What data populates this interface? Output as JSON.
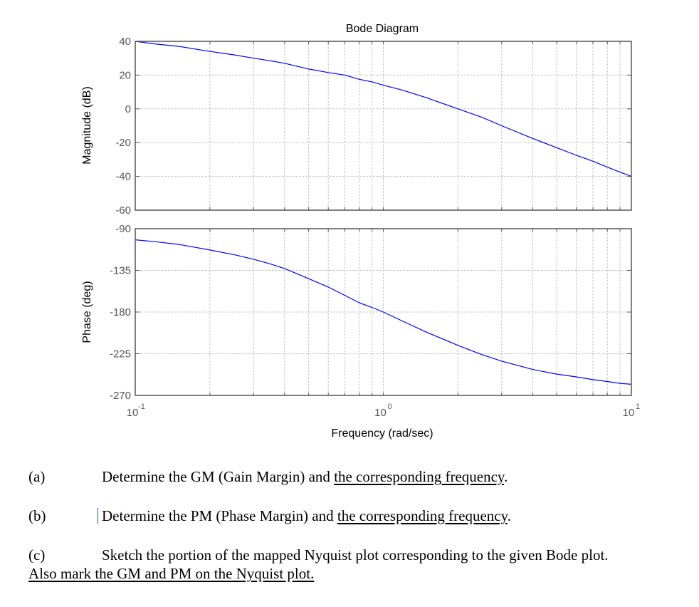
{
  "chart_data": {
    "type": "line",
    "title": "Bode Diagram",
    "xlabel": "Frequency (rad/sec)",
    "xscale": "log",
    "xlim": [
      0.1,
      10
    ],
    "x_ticks": [
      {
        "value": 0.1,
        "base": "10",
        "exp": "-1"
      },
      {
        "value": 1,
        "base": "10",
        "exp": "0"
      },
      {
        "value": 10,
        "base": "10",
        "exp": "1"
      }
    ],
    "grid": true,
    "line_color": "#0000ff",
    "subplots": [
      {
        "name": "magnitude",
        "ylabel": "Magnitude (dB)",
        "ylim": [
          -60,
          40
        ],
        "y_ticks": [
          40,
          20,
          0,
          -20,
          -40,
          -60
        ],
        "series": [
          {
            "name": "Magnitude",
            "x": [
              0.1,
              0.12,
              0.15,
              0.2,
              0.25,
              0.3,
              0.35,
              0.4,
              0.5,
              0.6,
              0.7,
              0.8,
              0.9,
              1.0,
              1.2,
              1.5,
              2.0,
              2.5,
              3.0,
              4.0,
              5.0,
              6.0,
              7.0,
              8.0,
              9.0,
              10.0
            ],
            "y": [
              40,
              38.5,
              37,
              34,
              32,
              30,
              28.5,
              27,
              23.6,
              21.5,
              20,
              17.5,
              16,
              14,
              11,
              6.5,
              0,
              -5,
              -10,
              -17.5,
              -23,
              -27.5,
              -31,
              -34.5,
              -37.5,
              -40
            ]
          }
        ]
      },
      {
        "name": "phase",
        "ylabel": "Phase (deg)",
        "ylim": [
          -270,
          -90
        ],
        "y_ticks": [
          -90,
          -135,
          -180,
          -225,
          -270
        ],
        "series": [
          {
            "name": "Phase",
            "x": [
              0.1,
              0.12,
              0.15,
              0.2,
              0.25,
              0.3,
              0.35,
              0.4,
              0.5,
              0.6,
              0.7,
              0.8,
              0.9,
              1.0,
              1.2,
              1.5,
              2.0,
              2.5,
              3.0,
              4.0,
              5.0,
              6.0,
              7.0,
              8.0,
              9.0,
              10.0
            ],
            "y": [
              -102,
              -104,
              -107,
              -113,
              -118,
              -123,
              -128,
              -133,
              -144,
              -153,
              -162,
              -170,
              -175,
              -180,
              -190,
              -202,
              -216,
              -226,
              -233,
              -242,
              -247,
              -250,
              -253,
              -255,
              -257,
              -258
            ]
          }
        ]
      }
    ]
  },
  "questions": [
    {
      "label": "(a)",
      "text": "Determine the GM (Gain Margin) and ",
      "underlined": "the corresponding frequency",
      "end": "."
    },
    {
      "label": "(b)",
      "text": "Determine the PM (Phase Margin) and ",
      "underlined": "the corresponding frequency",
      "end": "."
    },
    {
      "label": "(c)",
      "text": "Sketch the portion of the mapped Nyquist plot corresponding to the given Bode plot.",
      "line2": "Also mark the GM and PM on the Nyquist plot."
    }
  ]
}
